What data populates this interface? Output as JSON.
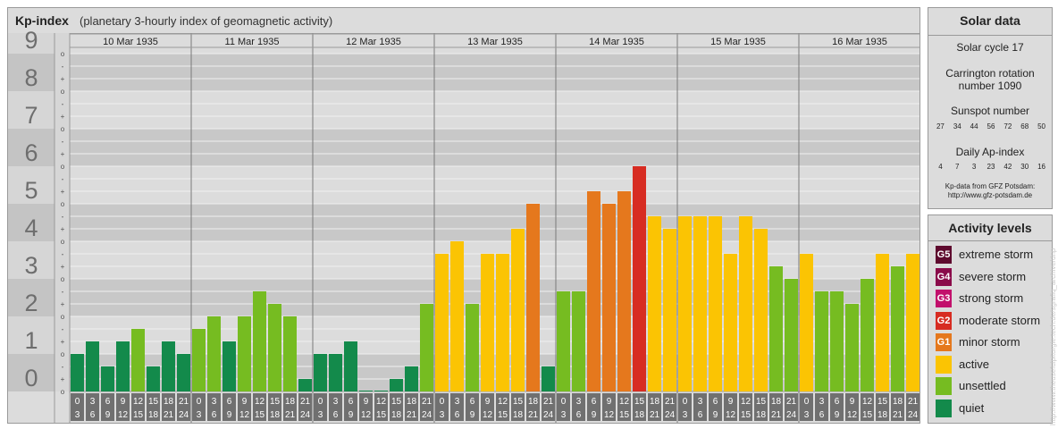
{
  "header": {
    "title": "Kp-index",
    "subtitle": "(planetary 3-hourly index of geomagnetic activity)"
  },
  "chart_data": {
    "type": "bar",
    "title": "Kp-index",
    "subtitle": "(planetary 3-hourly index of geomagnetic activity)",
    "ylim": [
      0,
      9
    ],
    "y_ticks": [
      "0",
      "1",
      "2",
      "3",
      "4",
      "5",
      "6",
      "7",
      "8",
      "9"
    ],
    "minor_ticks": [
      "o",
      "+",
      "-"
    ],
    "days": [
      "10 Mar 1935",
      "11 Mar 1935",
      "12 Mar 1935",
      "13 Mar 1935",
      "14 Mar 1935",
      "15 Mar 1935",
      "16 Mar 1935"
    ],
    "intervals": [
      [
        "0",
        "3"
      ],
      [
        "3",
        "6"
      ],
      [
        "6",
        "9"
      ],
      [
        "9",
        "12"
      ],
      [
        "12",
        "15"
      ],
      [
        "15",
        "18"
      ],
      [
        "18",
        "21"
      ],
      [
        "21",
        "24"
      ]
    ],
    "values": [
      [
        1.0,
        1.333,
        0.667,
        1.333,
        1.667,
        0.667,
        1.333,
        1.0
      ],
      [
        1.667,
        2.0,
        1.333,
        2.0,
        2.667,
        2.333,
        2.0,
        0.333
      ],
      [
        1.0,
        1.0,
        1.333,
        0.0,
        0.0,
        0.333,
        0.667,
        2.333
      ],
      [
        3.667,
        4.0,
        2.333,
        3.667,
        3.667,
        4.333,
        5.0,
        0.667
      ],
      [
        2.667,
        2.667,
        5.333,
        5.0,
        5.333,
        6.0,
        4.667,
        4.333
      ],
      [
        4.667,
        4.667,
        4.667,
        3.667,
        4.667,
        4.333,
        3.333,
        3.0
      ],
      [
        3.667,
        2.667,
        2.667,
        2.333,
        3.0,
        3.667,
        3.333,
        3.667
      ]
    ],
    "grid": true,
    "bar_colors": {
      "quiet": "#138a4b",
      "unsettled": "#76bc21",
      "active": "#fbc403",
      "minor": "#e5781d",
      "moderate": "#d72c22"
    }
  },
  "solar": {
    "title": "Solar data",
    "cycle": "Solar cycle 17",
    "carrington_line1": "Carrington rotation",
    "carrington_line2": "number 1090",
    "sunspot_label": "Sunspot number",
    "sunspot_values": [
      "27",
      "34",
      "44",
      "56",
      "72",
      "68",
      "50"
    ],
    "ap_label": "Daily Ap-index",
    "ap_values": [
      "4",
      "7",
      "3",
      "23",
      "42",
      "30",
      "16"
    ],
    "source_line1": "Kp-data from GFZ Potsdam:",
    "source_line2": "http://www.gfz-potsdam.de"
  },
  "activity": {
    "title": "Activity levels",
    "levels": [
      {
        "code": "G5",
        "label": "extreme storm",
        "color": "#5e0a2e"
      },
      {
        "code": "G4",
        "label": "severe storm",
        "color": "#8a0b4a"
      },
      {
        "code": "G3",
        "label": "strong storm",
        "color": "#c2106c"
      },
      {
        "code": "G2",
        "label": "moderate storm",
        "color": "#d72c22"
      },
      {
        "code": "G1",
        "label": "minor storm",
        "color": "#e5781d"
      },
      {
        "code": "",
        "label": "active",
        "color": "#fbc403"
      },
      {
        "code": "",
        "label": "unsettled",
        "color": "#76bc21"
      },
      {
        "code": "",
        "label": "quiet",
        "color": "#138a4b"
      }
    ]
  },
  "watermark": "http://www.theusefulpiturgie.tech.de/sgrafiq_archive/dnp"
}
